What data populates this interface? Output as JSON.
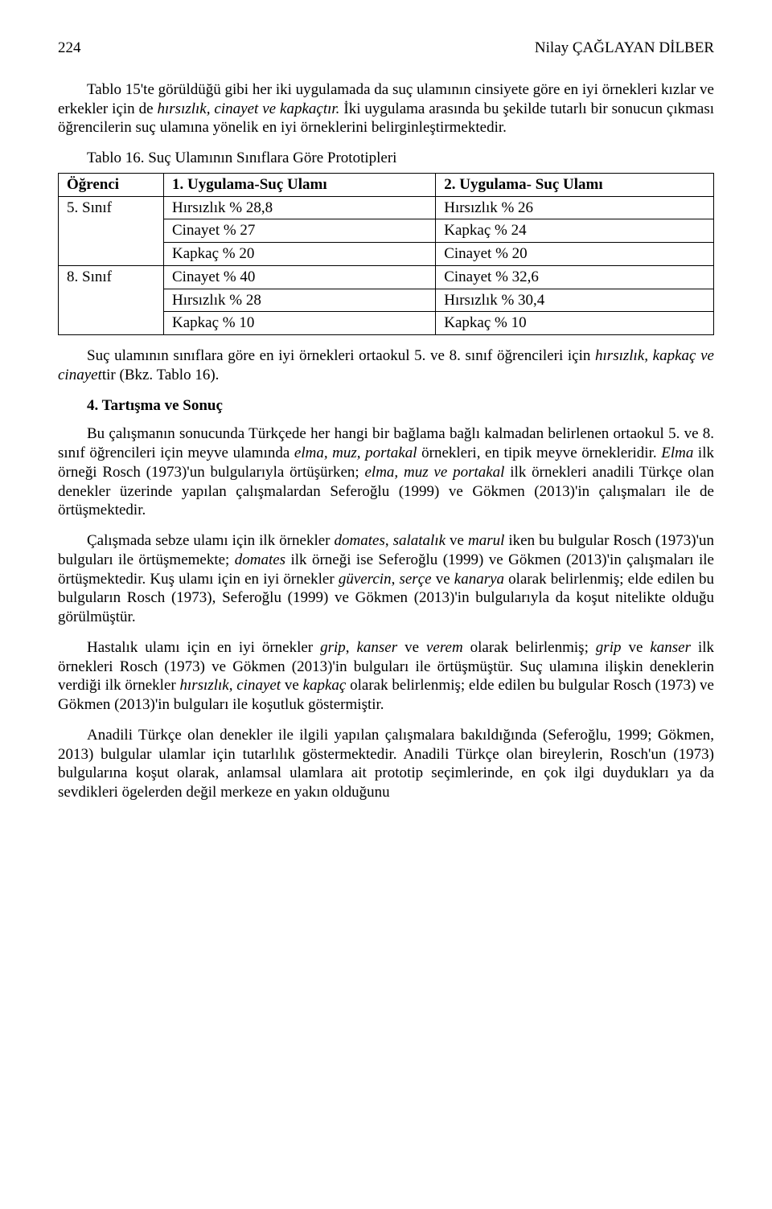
{
  "header": {
    "page_number": "224",
    "author": "Nilay ÇAĞLAYAN DİLBER"
  },
  "intro_para": {
    "t1": "Tablo 15'te görüldüğü gibi her iki uygulamada da suç ulamının cinsiyete göre en iyi örnekleri kızlar ve erkekler için de ",
    "it1": "hırsızlık, cinayet ve kapkaçtır.",
    "t2": " İki uygulama arasında bu şekilde tutarlı bir sonucun çıkması öğrencilerin suç ulamına yönelik en iyi örneklerini belirginleştirmektedir."
  },
  "table16": {
    "caption": "Tablo 16. Suç Ulamının Sınıflara Göre Prototipleri",
    "columns": [
      "Öğrenci",
      "1. Uygulama-Suç Ulamı",
      "2. Uygulama- Suç Ulamı"
    ],
    "col_widths": [
      "110px",
      "auto",
      "auto"
    ],
    "groups": [
      {
        "label": "5. Sınıf",
        "rows": [
          [
            "Hırsızlık % 28,8",
            "Hırsızlık % 26"
          ],
          [
            "Cinayet % 27",
            "Kapkaç % 24"
          ],
          [
            "Kapkaç % 20",
            "Cinayet % 20"
          ]
        ]
      },
      {
        "label": "8. Sınıf",
        "rows": [
          [
            "Cinayet % 40",
            "Cinayet % 32,6"
          ],
          [
            "Hırsızlık % 28",
            "Hırsızlık % 30,4"
          ],
          [
            "Kapkaç % 10",
            "Kapkaç % 10"
          ]
        ]
      }
    ]
  },
  "para_after_table": {
    "t1": "Suç ulamının sınıflara göre en iyi örnekleri ortaokul 5. ve 8. sınıf öğrencileri için ",
    "it1": "hırsızlık, kapkaç ve cinayet",
    "t2": "tir (Bkz. Tablo 16)."
  },
  "section_heading": "4. Tartışma ve Sonuç",
  "p1": {
    "t1": "Bu çalışmanın sonucunda Türkçede her hangi bir bağlama bağlı kalmadan belirlenen ortaokul 5. ve 8. sınıf öğrencileri için meyve ulamında ",
    "it1": "elma, muz, portakal",
    "t2": " örnekleri, en tipik meyve örnekleridir. ",
    "it2": "Elma",
    "t3": " ilk örneği Rosch (1973)'un bulgularıyla örtüşürken; ",
    "it3": "elma, muz ve portakal",
    "t4": " ilk örnekleri anadili Türkçe olan denekler üzerinde yapılan çalışmalardan Seferoğlu (1999) ve Gökmen (2013)'in çalışmaları ile de örtüşmektedir."
  },
  "p2": {
    "t1": "Çalışmada sebze ulamı için ilk örnekler ",
    "it1": "domates",
    "t2": ", ",
    "it2": "salatalık",
    "t3": " ve ",
    "it3": "marul",
    "t4": " iken bu bulgular Rosch (1973)'un bulguları ile örtüşmemekte; ",
    "it4": "domates",
    "t5": " ilk örneği ise Seferoğlu (1999) ve Gökmen (2013)'in çalışmaları ile örtüşmektedir. Kuş ulamı için en iyi örnekler ",
    "it5": "güvercin",
    "t6": ", ",
    "it6": "serçe",
    "t7": " ve ",
    "it7": "kanarya",
    "t8": " olarak belirlenmiş; elde edilen bu bulguların Rosch (1973), Seferoğlu (1999) ve Gökmen (2013)'in bulgularıyla da koşut nitelikte olduğu görülmüştür."
  },
  "p3": {
    "t1": "Hastalık ulamı için en iyi örnekler ",
    "it1": "grip",
    "t2": ", ",
    "it2": "kanser",
    "t3": " ve ",
    "it3": "verem",
    "t4": " olarak belirlenmiş; ",
    "it4": "grip",
    "t5": " ve ",
    "it5": "kanser",
    "t6": " ilk örnekleri Rosch (1973) ve Gökmen (2013)'in bulguları ile örtüşmüştür. Suç ulamına ilişkin deneklerin verdiği ilk örnekler ",
    "it6": "hırsızlık, cinayet",
    "t7": " ve ",
    "it7": "kapkaç",
    "t8": " olarak belirlenmiş; elde edilen bu bulgular Rosch (1973) ve Gökmen (2013)'in bulguları ile koşutluk göstermiştir."
  },
  "p4": {
    "t1": "Anadili Türkçe olan denekler ile ilgili yapılan çalışmalara bakıldığında (Seferoğlu, 1999; Gökmen, 2013) bulgular ulamlar için tutarlılık göstermektedir. Anadili Türkçe olan bireylerin, Rosch'un (1973) bulgularına koşut olarak, anlamsal ulamlara ait prototip seçimlerinde, en çok ilgi duydukları ya da sevdikleri ögelerden değil merkeze en yakın olduğunu"
  }
}
